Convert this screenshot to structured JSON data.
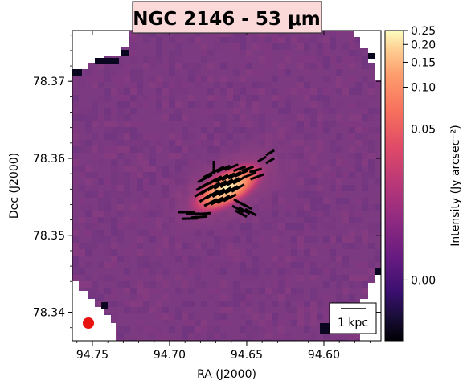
{
  "chart_data": {
    "type": "heatmap",
    "title": "NGC 2146 - 53 μm",
    "xlabel": "RA (J2000)",
    "ylabel": "Dec (J2000)",
    "xlim": [
      94.763,
      94.563
    ],
    "ylim": [
      78.3363,
      78.3766
    ],
    "xticks": [
      94.75,
      94.7,
      94.65,
      94.6
    ],
    "xtick_labels": [
      "94.75",
      "94.70",
      "94.65",
      "94.60"
    ],
    "yticks": [
      78.34,
      78.35,
      78.36,
      78.37
    ],
    "ytick_labels": [
      "78.34",
      "78.35",
      "78.36",
      "78.37"
    ],
    "colormap": "magma",
    "colorbar": {
      "label": "Intensity (Jy arcsec⁻²)",
      "ticks": [
        0.0,
        0.05,
        0.1,
        0.15,
        0.2,
        0.25
      ],
      "tick_labels": [
        "0.00",
        "0.05",
        "0.10",
        "0.15",
        "0.20",
        "0.25"
      ],
      "scale": "asinh"
    },
    "scalebar_label": "1 kpc",
    "beam_color": "#e8120f",
    "vector_color": "#000000",
    "title_box_color": "#fbd9d9"
  }
}
